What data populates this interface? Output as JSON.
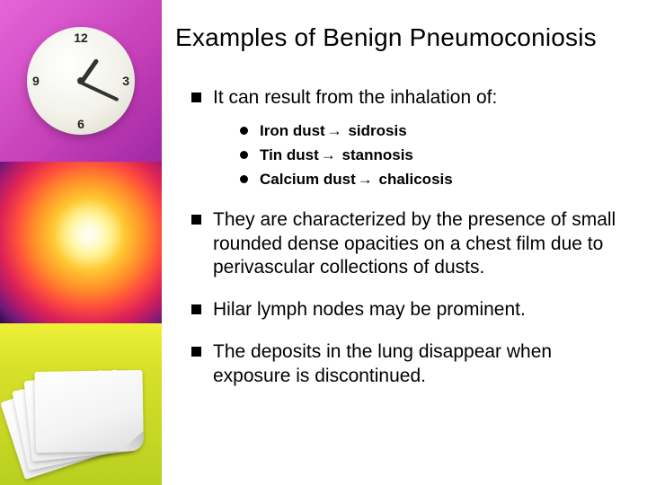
{
  "title": "Examples of Benign Pneumoconiosis",
  "intro": "It can result from the inhalation of:",
  "dusts": [
    {
      "material": "Iron dust",
      "arrow": "→",
      "disease": "sidrosis"
    },
    {
      "material": "Tin dust",
      "arrow": "→",
      "disease": "stannosis"
    },
    {
      "material": "Calcium dust",
      "arrow": "→",
      "disease": "chalicosis"
    }
  ],
  "points": [
    "They are characterized by the presence of small rounded dense opacities on a chest film due to perivascular collections of dusts.",
    "Hilar lymph nodes may be prominent.",
    "The deposits in the lung disappear when exposure is discontinued."
  ],
  "styling": {
    "background_color": "#ffffff",
    "text_color": "#000000",
    "title_fontsize": 28,
    "body_fontsize": 21,
    "sub_fontsize": 17,
    "bullet_color": "#000000",
    "sidebar_tiles": [
      {
        "type": "clock",
        "bg_gradient": [
          "#e665d8",
          "#c43fb8",
          "#a028a3"
        ],
        "clock_face": "#f2f2ea"
      },
      {
        "type": "abstract-radial",
        "colors": [
          "#fff7b0",
          "#fff060",
          "#ffc330",
          "#ff8a2a",
          "#ff4d3d",
          "#e02455",
          "#b01a6a",
          "#6a1a7a",
          "#2a0a40"
        ]
      },
      {
        "type": "paper-stack",
        "bg_gradient": [
          "#eef037",
          "#d6e029",
          "#b9cf20"
        ],
        "sheet_color": "#ffffff"
      }
    ]
  }
}
